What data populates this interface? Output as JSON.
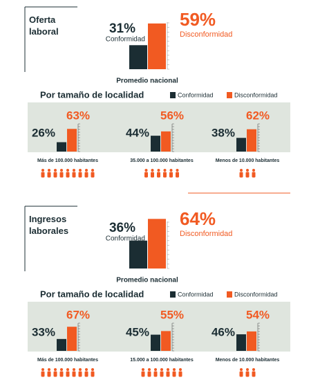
{
  "colors": [
    "#1b2d33",
    "#f15a22"
  ],
  "sections": [
    {
      "title": "Oferta laboral",
      "national": {
        "values": [
          31,
          59
        ],
        "value_labels": [
          "31%",
          "59%"
        ],
        "names": [
          "Conformidad",
          "Disconformidad"
        ],
        "label": "Promedio nacional"
      },
      "subtitle": "Por tamaño de localidad",
      "legend": [
        "Conformidad",
        "Disconformidad"
      ],
      "groups": [
        {
          "label": "Más de 100.000 habitantes",
          "values": [
            26,
            63
          ],
          "value_labels": [
            "26%",
            "63%"
          ]
        },
        {
          "label": "35.000 a 100.000 habitantes",
          "values": [
            44,
            56
          ],
          "value_labels": [
            "44%",
            "56%"
          ]
        },
        {
          "label": "Menos de 10.000 habitantes",
          "values": [
            38,
            62
          ],
          "value_labels": [
            "38%",
            "62%"
          ]
        }
      ]
    },
    {
      "title": "Ingresos laborales",
      "national": {
        "values": [
          36,
          64
        ],
        "value_labels": [
          "36%",
          "64%"
        ],
        "names": [
          "Conformidad",
          "Disconformidad"
        ],
        "label": "Promedio nacional"
      },
      "subtitle": "Por tamaño de localidad",
      "legend": [
        "Conformidad",
        "Disconformidad"
      ],
      "groups": [
        {
          "label": "Más de 100.000 habitantes",
          "values": [
            33,
            67
          ],
          "value_labels": [
            "33%",
            "67%"
          ]
        },
        {
          "label": "15.000 a 100.000 habitantes",
          "values": [
            45,
            55
          ],
          "value_labels": [
            "45%",
            "55%"
          ]
        },
        {
          "label": "Menos de 10.000 habitantes",
          "values": [
            46,
            54
          ],
          "value_labels": [
            "46%",
            "54%"
          ]
        }
      ]
    }
  ]
}
